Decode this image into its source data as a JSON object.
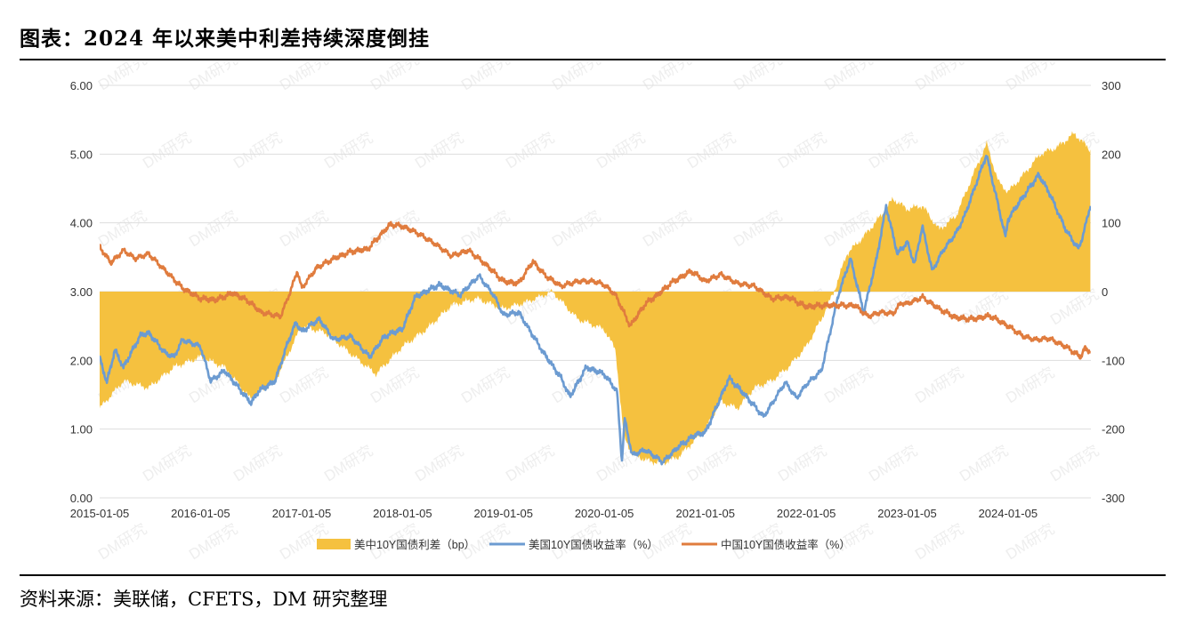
{
  "figure": {
    "title": "图表：2024 年以来美中利差持续深度倒挂",
    "source": "资料来源：美联储，CFETS，DM 研究整理",
    "watermark": "DM研究"
  },
  "chart_data": {
    "type": "line",
    "title": "",
    "y_left": {
      "range": [
        0,
        6
      ],
      "ticks": [
        "0.00",
        "1.00",
        "2.00",
        "3.00",
        "4.00",
        "5.00",
        "6.00"
      ]
    },
    "y_right": {
      "range": [
        -300,
        300
      ],
      "ticks": [
        "-300",
        "-200",
        "-100",
        "0",
        "100",
        "200",
        "300"
      ]
    },
    "x_ticks": [
      "2015-01-05",
      "2016-01-05",
      "2017-01-05",
      "2018-01-05",
      "2019-01-05",
      "2020-01-05",
      "2021-01-05",
      "2022-01-05",
      "2023-01-05",
      "2024-01-05"
    ],
    "x_range": [
      "2015-01-05",
      "2024-10-31"
    ],
    "legend_position": "bottom",
    "colors": {
      "spread": "#f5c13f",
      "us": "#6c9bd1",
      "cn": "#e07c3e",
      "grid": "#dddddd"
    },
    "series": [
      {
        "name": "美中10Y国债利差（bp）",
        "type": "area",
        "axis": "right",
        "x": [
          "2015-01-05",
          "2015-04-01",
          "2015-07-01",
          "2015-10-01",
          "2016-01-05",
          "2016-04-01",
          "2016-07-01",
          "2016-10-01",
          "2017-01-05",
          "2017-04-01",
          "2017-07-01",
          "2017-10-01",
          "2018-01-05",
          "2018-04-01",
          "2018-07-01",
          "2018-10-01",
          "2019-01-05",
          "2019-04-01",
          "2019-07-01",
          "2019-10-01",
          "2020-01-05",
          "2020-02-15",
          "2020-03-15",
          "2020-04-15",
          "2020-06-01",
          "2020-08-01",
          "2020-10-01",
          "2021-01-05",
          "2021-03-01",
          "2021-05-01",
          "2021-07-01",
          "2021-09-01",
          "2021-11-01",
          "2022-01-05",
          "2022-03-01",
          "2022-04-15",
          "2022-06-01",
          "2022-08-01",
          "2022-10-01",
          "2022-11-15",
          "2023-01-05",
          "2023-03-01",
          "2023-05-01",
          "2023-07-01",
          "2023-09-01",
          "2023-10-20",
          "2023-12-01",
          "2024-01-05",
          "2024-03-01",
          "2024-05-01",
          "2024-07-01",
          "2024-09-01",
          "2024-10-31"
        ],
        "values": [
          -170,
          -130,
          -140,
          -110,
          -95,
          -110,
          -155,
          -130,
          -50,
          -60,
          -90,
          -120,
          -80,
          -55,
          -20,
          -10,
          -25,
          -15,
          0,
          -40,
          -55,
          -85,
          -210,
          -235,
          -245,
          -250,
          -240,
          -200,
          -160,
          -170,
          -140,
          -130,
          -110,
          -80,
          -40,
          0,
          55,
          80,
          110,
          135,
          120,
          125,
          90,
          110,
          170,
          215,
          160,
          145,
          170,
          200,
          210,
          230,
          205
        ]
      },
      {
        "name": "美国10Y国债收益率（%）",
        "type": "line",
        "axis": "left",
        "x": [
          "2015-01-05",
          "2015-01-31",
          "2015-03-01",
          "2015-04-01",
          "2015-06-01",
          "2015-07-01",
          "2015-09-01",
          "2015-10-01",
          "2015-11-01",
          "2016-01-05",
          "2016-02-11",
          "2016-04-01",
          "2016-07-06",
          "2016-08-01",
          "2016-10-01",
          "2016-11-15",
          "2016-12-15",
          "2017-01-05",
          "2017-03-10",
          "2017-05-01",
          "2017-07-01",
          "2017-09-08",
          "2017-11-01",
          "2018-01-05",
          "2018-02-20",
          "2018-05-17",
          "2018-08-01",
          "2018-10-08",
          "2018-12-01",
          "2019-01-05",
          "2019-03-01",
          "2019-06-01",
          "2019-08-01",
          "2019-09-03",
          "2019-11-01",
          "2020-01-05",
          "2020-02-20",
          "2020-03-09",
          "2020-03-19",
          "2020-04-15",
          "2020-06-01",
          "2020-08-04",
          "2020-10-01",
          "2020-12-01",
          "2021-01-05",
          "2021-03-31",
          "2021-05-01",
          "2021-08-04",
          "2021-10-21",
          "2021-12-01",
          "2022-01-05",
          "2022-03-01",
          "2022-04-01",
          "2022-05-01",
          "2022-06-14",
          "2022-08-01",
          "2022-09-15",
          "2022-10-21",
          "2022-12-01",
          "2023-01-05",
          "2023-02-01",
          "2023-03-01",
          "2023-04-06",
          "2023-05-15",
          "2023-07-01",
          "2023-08-01",
          "2023-10-19",
          "2023-12-01",
          "2023-12-27",
          "2024-01-05",
          "2024-02-15",
          "2024-04-25",
          "2024-06-01",
          "2024-08-01",
          "2024-09-16",
          "2024-10-01",
          "2024-10-31"
        ],
        "values": [
          2.04,
          1.68,
          2.15,
          1.9,
          2.36,
          2.4,
          2.1,
          2.05,
          2.3,
          2.2,
          1.7,
          1.85,
          1.38,
          1.55,
          1.7,
          2.25,
          2.55,
          2.42,
          2.6,
          2.3,
          2.35,
          2.05,
          2.35,
          2.46,
          2.92,
          3.1,
          2.95,
          3.23,
          2.95,
          2.66,
          2.7,
          2.1,
          1.75,
          1.47,
          1.9,
          1.8,
          1.55,
          0.54,
          1.15,
          0.62,
          0.7,
          0.52,
          0.75,
          0.92,
          0.95,
          1.74,
          1.62,
          1.18,
          1.68,
          1.45,
          1.65,
          1.85,
          2.4,
          2.95,
          3.48,
          2.7,
          3.45,
          4.24,
          3.55,
          3.72,
          3.4,
          3.95,
          3.3,
          3.6,
          3.85,
          4.1,
          4.99,
          4.25,
          3.79,
          4.05,
          4.3,
          4.7,
          4.45,
          3.9,
          3.62,
          3.8,
          4.28
        ]
      },
      {
        "name": "中国10Y国债收益率（%）",
        "type": "line",
        "axis": "left",
        "x": [
          "2015-01-05",
          "2015-02-15",
          "2015-04-01",
          "2015-05-15",
          "2015-07-01",
          "2015-09-01",
          "2015-11-01",
          "2016-01-05",
          "2016-03-01",
          "2016-05-01",
          "2016-07-01",
          "2016-08-10",
          "2016-10-21",
          "2016-11-25",
          "2016-12-20",
          "2017-01-05",
          "2017-03-01",
          "2017-05-01",
          "2017-07-01",
          "2017-09-01",
          "2017-11-22",
          "2018-01-05",
          "2018-03-01",
          "2018-05-01",
          "2018-07-01",
          "2018-09-01",
          "2018-11-01",
          "2019-01-05",
          "2019-03-01",
          "2019-04-22",
          "2019-06-01",
          "2019-08-01",
          "2019-10-01",
          "2019-12-01",
          "2020-01-05",
          "2020-02-15",
          "2020-04-08",
          "2020-06-01",
          "2020-07-15",
          "2020-09-01",
          "2020-11-15",
          "2021-01-05",
          "2021-03-01",
          "2021-05-01",
          "2021-07-01",
          "2021-09-01",
          "2021-11-01",
          "2022-01-05",
          "2022-03-01",
          "2022-05-01",
          "2022-07-01",
          "2022-08-15",
          "2022-10-01",
          "2022-11-15",
          "2022-12-15",
          "2023-01-05",
          "2023-03-01",
          "2023-05-01",
          "2023-07-01",
          "2023-09-01",
          "2023-11-01",
          "2024-01-05",
          "2024-03-01",
          "2024-04-15",
          "2024-06-01",
          "2024-08-01",
          "2024-09-24",
          "2024-10-10",
          "2024-10-31"
        ],
        "values": [
          3.65,
          3.42,
          3.6,
          3.48,
          3.55,
          3.3,
          3.05,
          2.9,
          2.88,
          2.98,
          2.85,
          2.7,
          2.64,
          3.0,
          3.3,
          3.05,
          3.35,
          3.48,
          3.58,
          3.62,
          3.98,
          3.95,
          3.85,
          3.7,
          3.52,
          3.6,
          3.4,
          3.15,
          3.12,
          3.44,
          3.25,
          3.08,
          3.15,
          3.15,
          3.1,
          2.95,
          2.5,
          2.82,
          2.95,
          3.12,
          3.3,
          3.15,
          3.25,
          3.12,
          3.08,
          2.9,
          2.92,
          2.78,
          2.8,
          2.8,
          2.8,
          2.64,
          2.7,
          2.68,
          2.84,
          2.82,
          2.92,
          2.75,
          2.62,
          2.6,
          2.65,
          2.5,
          2.35,
          2.3,
          2.32,
          2.2,
          2.05,
          2.18,
          2.12
        ]
      }
    ]
  }
}
